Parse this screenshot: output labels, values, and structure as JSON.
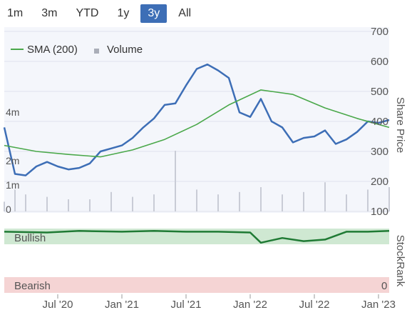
{
  "range_selector": {
    "buttons": [
      "1m",
      "3m",
      "YTD",
      "1y",
      "3y",
      "All"
    ],
    "active": "3y"
  },
  "legend": {
    "sma_label": "SMA (200)",
    "volume_label": "Volume"
  },
  "colors": {
    "price": "#3d6eb6",
    "sma": "#4aa84a",
    "volume": "#c9ccd6",
    "stockrank": "#1f7a34",
    "bullish_fill": "#cfe8d2",
    "bearish_fill": "#f5d4d4",
    "active_button": "#3d6eb6"
  },
  "chart_data": {
    "type": "line",
    "title": "",
    "xlabel": "",
    "ylabel": "Share Price",
    "ylabel_secondary": "StockRank",
    "x_tick_labels": [
      "Jul '20",
      "Jan '21",
      "Jul '21",
      "Jan '22",
      "Jul '22",
      "Jan '23"
    ],
    "x_range": [
      "2020-02",
      "2023-02"
    ],
    "price_axis": {
      "ylim": [
        100,
        700
      ],
      "ticks": [
        "100",
        "200",
        "300",
        "400",
        "500",
        "600",
        "700"
      ]
    },
    "volume_axis": {
      "ylim": [
        0,
        4000000
      ],
      "ticks": [
        "0",
        "1m",
        "2m",
        "4m"
      ]
    },
    "stockrank_axis": {
      "ticks": [
        "0"
      ],
      "bullish_label": "Bullish",
      "bearish_label": "Bearish"
    },
    "series": [
      {
        "name": "Share Price",
        "kind": "price",
        "x": [
          "2020-02",
          "2020-03",
          "2020-04",
          "2020-05",
          "2020-06",
          "2020-07",
          "2020-08",
          "2020-09",
          "2020-10",
          "2020-11",
          "2020-12",
          "2021-01",
          "2021-02",
          "2021-03",
          "2021-04",
          "2021-05",
          "2021-06",
          "2021-07",
          "2021-08",
          "2021-09",
          "2021-10",
          "2021-11",
          "2021-12",
          "2022-01",
          "2022-02",
          "2022-03",
          "2022-04",
          "2022-05",
          "2022-06",
          "2022-07",
          "2022-08",
          "2022-09",
          "2022-10",
          "2022-11",
          "2022-12",
          "2023-01",
          "2023-02"
        ],
        "values": [
          380,
          225,
          220,
          250,
          265,
          250,
          240,
          245,
          260,
          300,
          310,
          320,
          345,
          380,
          410,
          455,
          460,
          520,
          575,
          590,
          570,
          545,
          430,
          415,
          475,
          400,
          380,
          330,
          345,
          350,
          370,
          325,
          340,
          365,
          400,
          395,
          405
        ]
      },
      {
        "name": "SMA (200)",
        "kind": "sma",
        "x": [
          "2020-02",
          "2020-05",
          "2020-08",
          "2020-11",
          "2021-02",
          "2021-05",
          "2021-08",
          "2021-11",
          "2022-02",
          "2022-05",
          "2022-08",
          "2022-11",
          "2023-02"
        ],
        "values": [
          320,
          300,
          290,
          282,
          305,
          340,
          390,
          455,
          505,
          490,
          445,
          410,
          380
        ]
      },
      {
        "name": "Volume",
        "kind": "volume",
        "x": [
          "2020-02",
          "2020-03",
          "2020-04",
          "2020-06",
          "2020-08",
          "2020-10",
          "2020-12",
          "2021-02",
          "2021-04",
          "2021-06",
          "2021-08",
          "2021-10",
          "2021-12",
          "2022-02",
          "2022-04",
          "2022-06",
          "2022-08",
          "2022-10",
          "2022-12",
          "2023-02"
        ],
        "values": [
          400000,
          900000,
          700000,
          600000,
          500000,
          500000,
          800000,
          600000,
          700000,
          2500000,
          900000,
          700000,
          800000,
          1000000,
          700000,
          800000,
          1200000,
          700000,
          900000,
          1000000
        ]
      },
      {
        "name": "StockRank",
        "kind": "stockrank",
        "x": [
          "2020-02",
          "2020-06",
          "2020-09",
          "2021-01",
          "2021-04",
          "2021-07",
          "2021-10",
          "2022-01",
          "2022-02",
          "2022-04",
          "2022-06",
          "2022-08",
          "2022-10",
          "2022-12",
          "2023-02"
        ],
        "values": [
          96,
          95,
          97,
          96,
          97,
          96,
          96,
          95,
          82,
          88,
          84,
          86,
          96,
          96,
          97
        ]
      }
    ],
    "grid": true,
    "legend_position": "top-left"
  }
}
